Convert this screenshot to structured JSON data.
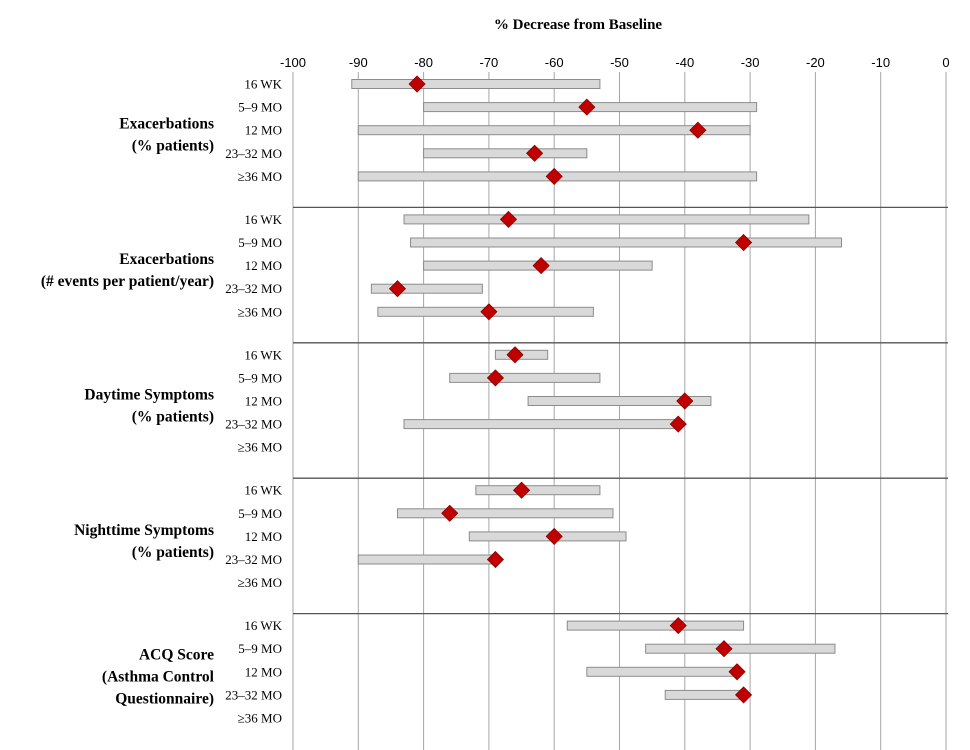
{
  "chart_data": {
    "type": "range-dot",
    "title": "% Decrease from Baseline",
    "xlim": [
      -100,
      0
    ],
    "x_ticks": [
      -100,
      -90,
      -80,
      -70,
      -60,
      -50,
      -40,
      -30,
      -20,
      -10,
      0
    ],
    "grid": true,
    "rows": [
      "16 WK",
      "5–9 MO",
      "12 MO",
      "23–32 MO",
      "≥36 MO"
    ],
    "groups": [
      {
        "label_lines": [
          "Exacerbations",
          "(% patients)"
        ],
        "entries": [
          {
            "row": "16 WK",
            "low": -91,
            "high": -53,
            "value": -81
          },
          {
            "row": "5–9 MO",
            "low": -80,
            "high": -29,
            "value": -55
          },
          {
            "row": "12 MO",
            "low": -90,
            "high": -30,
            "value": -38
          },
          {
            "row": "23–32 MO",
            "low": -80,
            "high": -55,
            "value": -63
          },
          {
            "row": "≥36 MO",
            "low": -90,
            "high": -29,
            "value": -60
          }
        ]
      },
      {
        "label_lines": [
          "Exacerbations",
          "(# events per patient/year)"
        ],
        "entries": [
          {
            "row": "16 WK",
            "low": -83,
            "high": -21,
            "value": -67
          },
          {
            "row": "5–9 MO",
            "low": -82,
            "high": -16,
            "value": -31
          },
          {
            "row": "12 MO",
            "low": -80,
            "high": -45,
            "value": -62
          },
          {
            "row": "23–32 MO",
            "low": -88,
            "high": -71,
            "value": -84
          },
          {
            "row": "≥36 MO",
            "low": -87,
            "high": -54,
            "value": -70
          }
        ]
      },
      {
        "label_lines": [
          "Daytime Symptoms",
          "(% patients)"
        ],
        "entries": [
          {
            "row": "16 WK",
            "low": -69,
            "high": -61,
            "value": -66
          },
          {
            "row": "5–9 MO",
            "low": -76,
            "high": -53,
            "value": -69
          },
          {
            "row": "12 MO",
            "low": -64,
            "high": -36,
            "value": -40
          },
          {
            "row": "23–32 MO",
            "low": -83,
            "high": -41,
            "value": -41
          },
          {
            "row": "≥36 MO",
            "low": null,
            "high": null,
            "value": null
          }
        ]
      },
      {
        "label_lines": [
          "Nighttime Symptoms",
          "(% patients)"
        ],
        "entries": [
          {
            "row": "16 WK",
            "low": -72,
            "high": -53,
            "value": -65
          },
          {
            "row": "5–9 MO",
            "low": -84,
            "high": -51,
            "value": -76
          },
          {
            "row": "12 MO",
            "low": -73,
            "high": -49,
            "value": -60
          },
          {
            "row": "23–32 MO",
            "low": -90,
            "high": -69,
            "value": -69
          },
          {
            "row": "≥36 MO",
            "low": null,
            "high": null,
            "value": null
          }
        ]
      },
      {
        "label_lines": [
          "ACQ Score",
          "(Asthma Control",
          "Questionnaire)"
        ],
        "entries": [
          {
            "row": "16 WK",
            "low": -58,
            "high": -31,
            "value": -41
          },
          {
            "row": "5–9 MO",
            "low": -46,
            "high": -17,
            "value": -34
          },
          {
            "row": "12 MO",
            "low": -55,
            "high": -32,
            "value": -32
          },
          {
            "row": "23–32 MO",
            "low": -43,
            "high": -31,
            "value": -31
          },
          {
            "row": "≥36 MO",
            "low": null,
            "high": null,
            "value": null
          }
        ]
      }
    ],
    "colors": {
      "bar_fill": "#d9d9d9",
      "bar_stroke": "#8c8c8c",
      "marker": "#c00000",
      "grid": "#a6a6a6"
    }
  }
}
